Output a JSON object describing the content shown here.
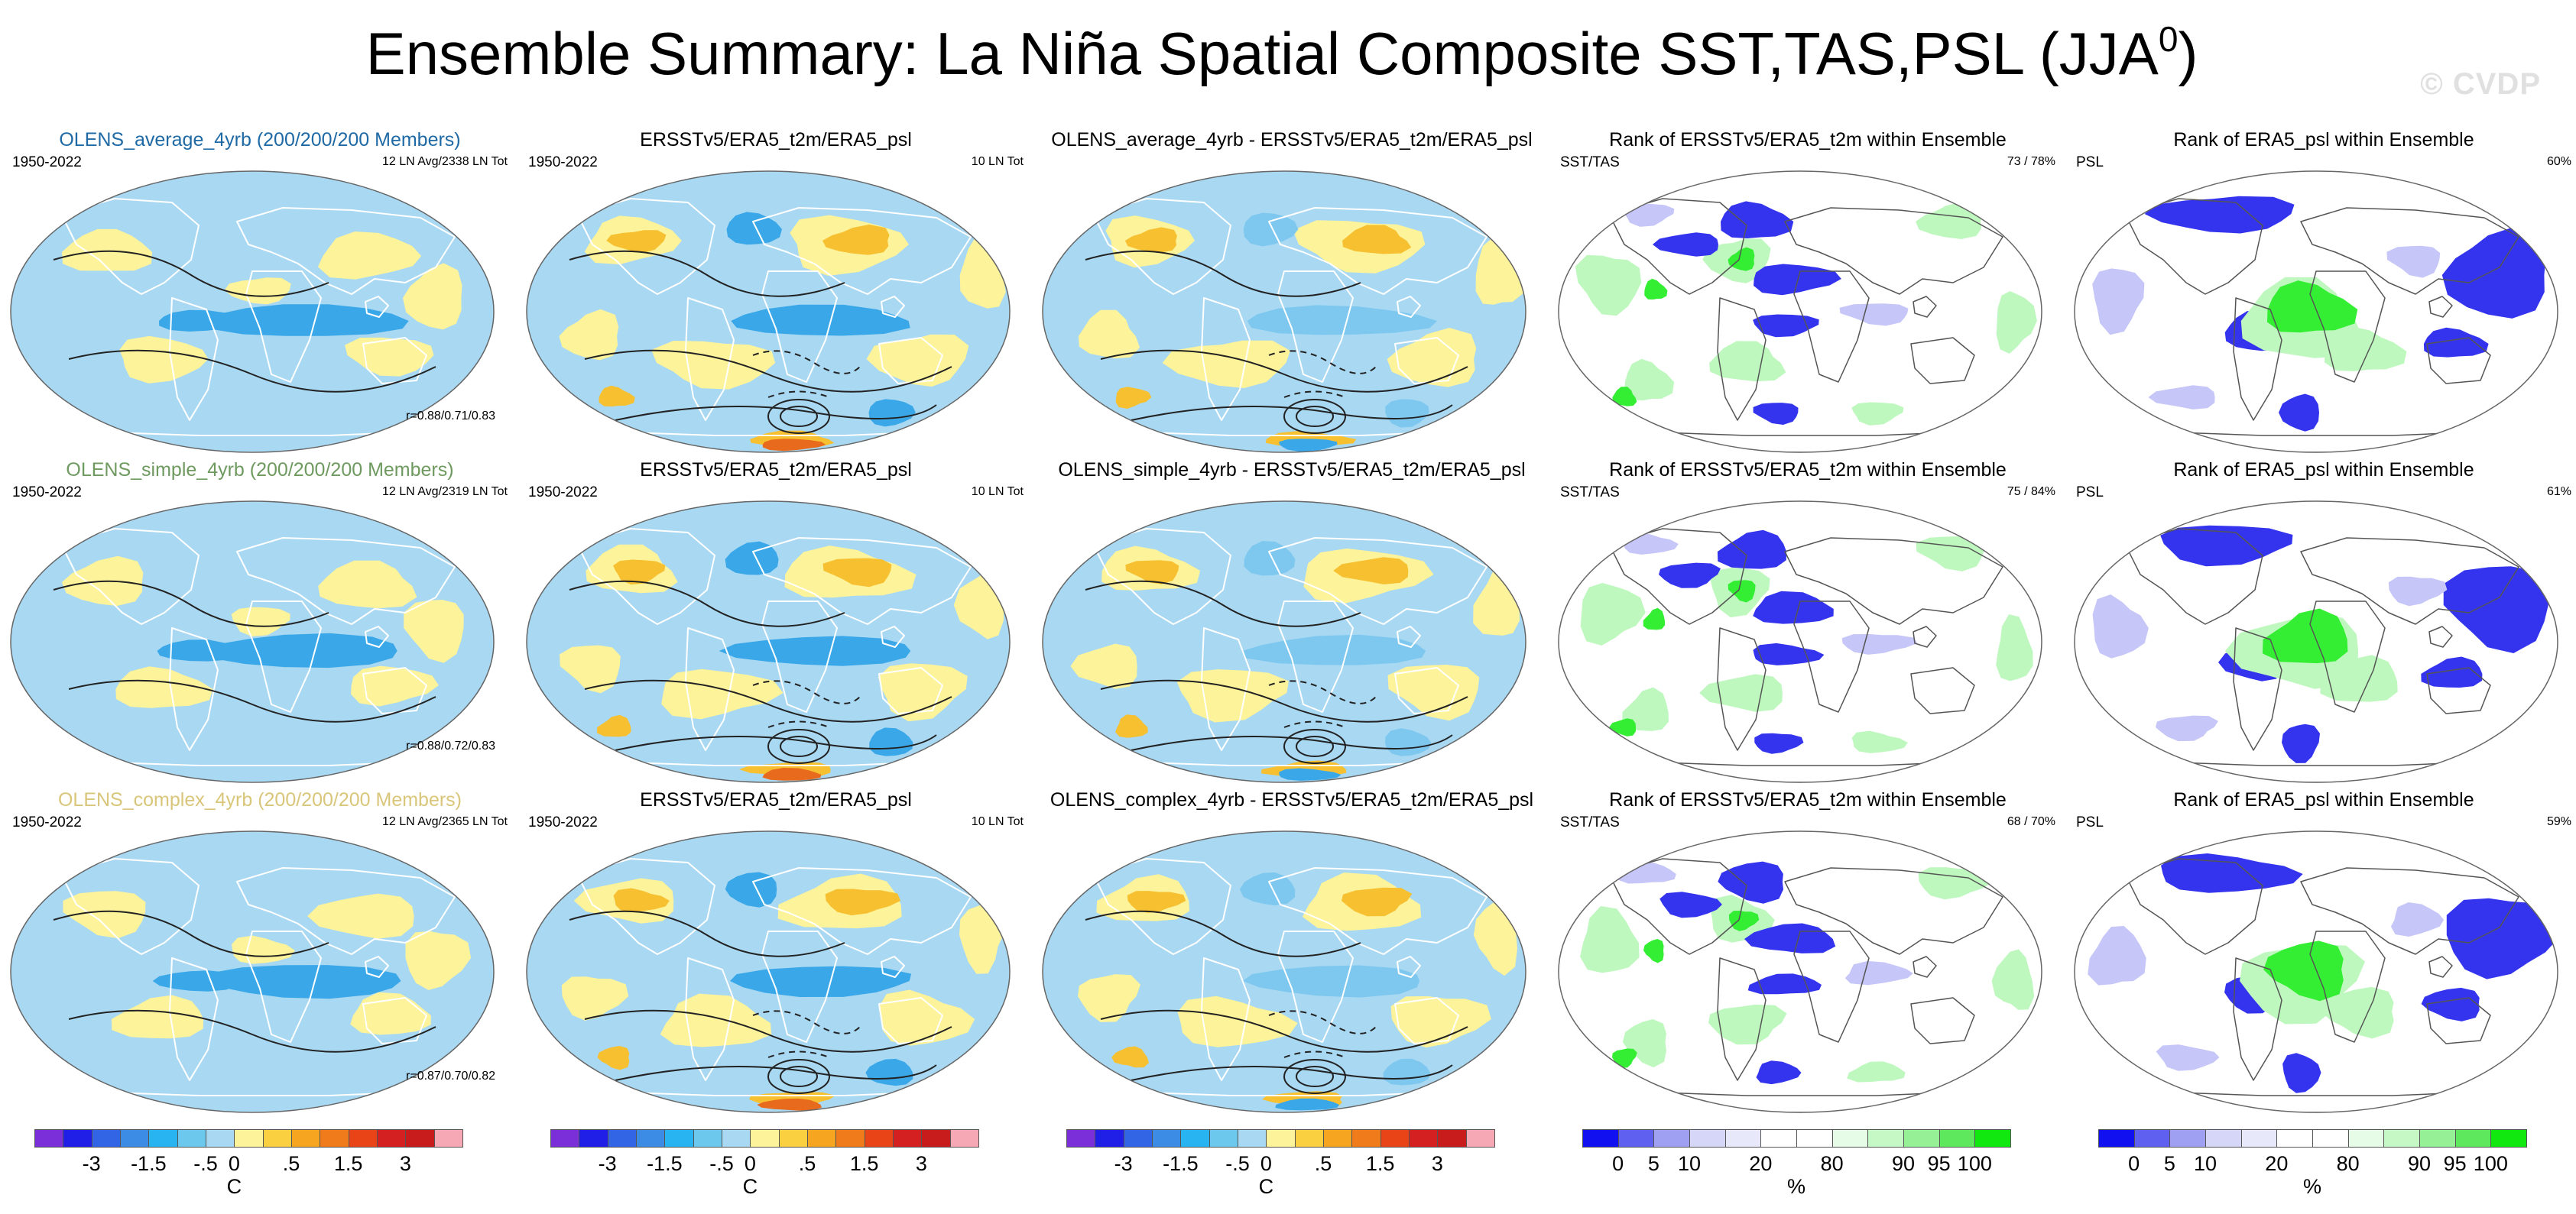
{
  "figure": {
    "title": "Ensemble Summary: La Niña Spatial Composite SST,TAS,PSL (JJA",
    "title_sup": "0",
    "title_close": ")",
    "watermark": "© CVDP"
  },
  "colors": {
    "ocean_neg": "#a9d8f2",
    "land_pos": "#fdf39a",
    "deep_neg": "#3aa8e8",
    "warm": "#f6c030",
    "hot": "#e86a1c",
    "cool": "#7ec8f0",
    "rank_green": "#33ee33",
    "rank_lightgreen": "#bff8bf",
    "rank_blue": "#3434ee",
    "rank_lightblue": "#c6c6f8",
    "coast": "#555555"
  },
  "chart_data": [
    {
      "type": "heatmap",
      "row": 1,
      "col": 1,
      "variant": "ensemble",
      "title": "OLENS_average_4yrb (200/200/200 Members)",
      "title_color": "#1f6aa5",
      "left": "1950-2022",
      "right1": "12 LN Avg/2338 LN Tot",
      "corr": "r=0.88/0.71/0.83"
    },
    {
      "type": "heatmap",
      "row": 1,
      "col": 2,
      "variant": "obs",
      "title": "ERSSTv5/ERA5_t2m/ERA5_psl",
      "title_color": "#000000",
      "left": "1950-2022",
      "right1": "10 LN Tot"
    },
    {
      "type": "heatmap",
      "row": 1,
      "col": 3,
      "variant": "diff",
      "title": "OLENS_average_4yrb - ERSSTv5/ERA5_t2m/ERA5_psl",
      "title_color": "#000000"
    },
    {
      "type": "heatmap",
      "row": 1,
      "col": 4,
      "variant": "rank1",
      "title": "Rank of ERSSTv5/ERA5_t2m within Ensemble",
      "title_color": "#000000",
      "left": "SST/TAS",
      "right1": "73 /  78%"
    },
    {
      "type": "heatmap",
      "row": 1,
      "col": 5,
      "variant": "rank2",
      "title": "Rank of ERA5_psl within Ensemble",
      "title_color": "#000000",
      "left": "PSL",
      "right1": "60%"
    },
    {
      "type": "heatmap",
      "row": 2,
      "col": 1,
      "variant": "ensemble",
      "title": "OLENS_simple_4yrb (200/200/200 Members)",
      "title_color": "#6e9a5f",
      "left": "1950-2022",
      "right1": "12 LN Avg/2319 LN Tot",
      "corr": "r=0.88/0.72/0.83"
    },
    {
      "type": "heatmap",
      "row": 2,
      "col": 2,
      "variant": "obs",
      "title": "ERSSTv5/ERA5_t2m/ERA5_psl",
      "title_color": "#000000",
      "left": "1950-2022",
      "right1": "10 LN Tot"
    },
    {
      "type": "heatmap",
      "row": 2,
      "col": 3,
      "variant": "diff",
      "title": "OLENS_simple_4yrb - ERSSTv5/ERA5_t2m/ERA5_psl",
      "title_color": "#000000"
    },
    {
      "type": "heatmap",
      "row": 2,
      "col": 4,
      "variant": "rank1",
      "title": "Rank of ERSSTv5/ERA5_t2m within Ensemble",
      "title_color": "#000000",
      "left": "SST/TAS",
      "right1": "75 /  84%"
    },
    {
      "type": "heatmap",
      "row": 2,
      "col": 5,
      "variant": "rank2",
      "title": "Rank of ERA5_psl within Ensemble",
      "title_color": "#000000",
      "left": "PSL",
      "right1": "61%"
    },
    {
      "type": "heatmap",
      "row": 3,
      "col": 1,
      "variant": "ensemble",
      "title": "OLENS_complex_4yrb (200/200/200 Members)",
      "title_color": "#d9c67a",
      "left": "1950-2022",
      "right1": "12 LN Avg/2365 LN Tot",
      "corr": "r=0.87/0.70/0.82"
    },
    {
      "type": "heatmap",
      "row": 3,
      "col": 2,
      "variant": "obs",
      "title": "ERSSTv5/ERA5_t2m/ERA5_psl",
      "title_color": "#000000",
      "left": "1950-2022",
      "right1": "10 LN Tot"
    },
    {
      "type": "heatmap",
      "row": 3,
      "col": 3,
      "variant": "diff",
      "title": "OLENS_complex_4yrb - ERSSTv5/ERA5_t2m/ERA5_psl",
      "title_color": "#000000"
    },
    {
      "type": "heatmap",
      "row": 3,
      "col": 4,
      "variant": "rank1",
      "title": "Rank of ERSSTv5/ERA5_t2m within Ensemble",
      "title_color": "#000000",
      "left": "SST/TAS",
      "right1": "68 /  70%"
    },
    {
      "type": "heatmap",
      "row": 3,
      "col": 5,
      "variant": "rank2",
      "title": "Rank of ERA5_psl within Ensemble",
      "title_color": "#000000",
      "left": "PSL",
      "right1": "59%"
    }
  ],
  "legends": [
    {
      "col": 1,
      "unit": "C",
      "colors": [
        "#7b2fd8",
        "#1f1fe8",
        "#3264e6",
        "#3c8ce6",
        "#28b4f0",
        "#6cc8ec",
        "#a9d8f2",
        "#fdf39a",
        "#fad040",
        "#f6a520",
        "#f07b1a",
        "#e84418",
        "#d42020",
        "#c81c1c",
        "#f6a8b4"
      ],
      "ticks": [
        "-3",
        "-1.5",
        "-.5",
        "0",
        ".5",
        "1.5",
        "3"
      ]
    },
    {
      "col": 2,
      "unit": "C",
      "colors": [
        "#7b2fd8",
        "#1f1fe8",
        "#3264e6",
        "#3c8ce6",
        "#28b4f0",
        "#6cc8ec",
        "#a9d8f2",
        "#fdf39a",
        "#fad040",
        "#f6a520",
        "#f07b1a",
        "#e84418",
        "#d42020",
        "#c81c1c",
        "#f6a8b4"
      ],
      "ticks": [
        "-3",
        "-1.5",
        "-.5",
        "0",
        ".5",
        "1.5",
        "3"
      ]
    },
    {
      "col": 3,
      "unit": "C",
      "colors": [
        "#7b2fd8",
        "#1f1fe8",
        "#3264e6",
        "#3c8ce6",
        "#28b4f0",
        "#6cc8ec",
        "#a9d8f2",
        "#fdf39a",
        "#fad040",
        "#f6a520",
        "#f07b1a",
        "#e84418",
        "#d42020",
        "#c81c1c",
        "#f6a8b4"
      ],
      "ticks": [
        "-3",
        "-1.5",
        "-.5",
        "0",
        ".5",
        "1.5",
        "3"
      ]
    },
    {
      "col": 4,
      "unit": "%",
      "colors": [
        "#1010f0",
        "#6060f0",
        "#a0a0f2",
        "#d6d6f8",
        "#e8e8fb",
        "#ffffff",
        "#ffffff",
        "#e6fce6",
        "#c6f8c6",
        "#96f096",
        "#5ee85e",
        "#10e810"
      ],
      "ticks": [
        "0",
        "5",
        "10",
        "20",
        "80",
        "90",
        "95",
        "100"
      ]
    },
    {
      "col": 5,
      "unit": "%",
      "colors": [
        "#1010f0",
        "#6060f0",
        "#a0a0f2",
        "#d6d6f8",
        "#e8e8fb",
        "#ffffff",
        "#ffffff",
        "#e6fce6",
        "#c6f8c6",
        "#96f096",
        "#5ee85e",
        "#10e810"
      ],
      "ticks": [
        "0",
        "5",
        "10",
        "20",
        "80",
        "90",
        "95",
        "100"
      ]
    }
  ]
}
